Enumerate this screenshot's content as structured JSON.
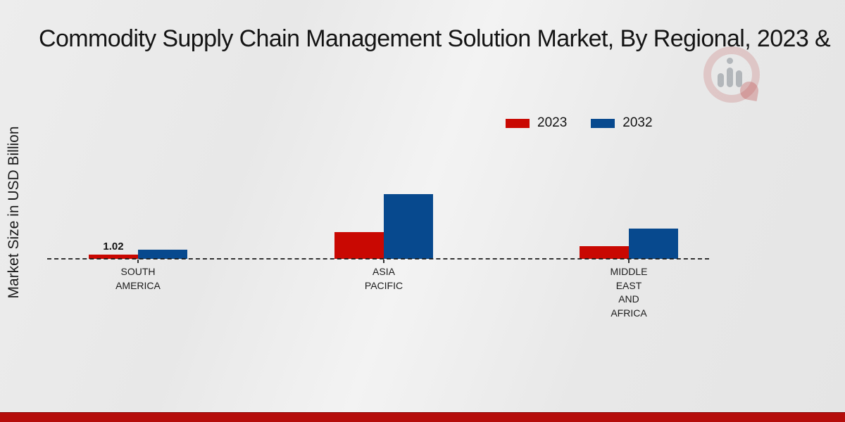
{
  "title": "Commodity Supply Chain Management Solution Market, By Regional, 2023 &",
  "ylabel": "Market Size in USD Billion",
  "legend": {
    "items": [
      {
        "label": "2023",
        "color": "#c90802"
      },
      {
        "label": "2032",
        "color": "#07498e"
      }
    ]
  },
  "footer": {
    "stripe_color": "#b50d0b"
  },
  "watermark": {
    "name": "market-research-brand-logo"
  },
  "chart_data": {
    "type": "bar",
    "categories": [
      "South America",
      "Asia Pacific",
      "Middle East and Africa"
    ],
    "category_tick_labels": [
      [
        "SOUTH",
        "AMERICA"
      ],
      [
        "ASIA",
        "PACIFIC"
      ],
      [
        "MIDDLE",
        "EAST",
        "AND",
        "AFRICA"
      ]
    ],
    "series": [
      {
        "name": "2023",
        "color": "#c90802",
        "values": [
          1.02,
          7.1,
          3.25
        ],
        "data_labels": [
          "1.02",
          "",
          ""
        ]
      },
      {
        "name": "2032",
        "color": "#07498e",
        "values": [
          2.35,
          17.1,
          7.9
        ],
        "data_labels": [
          "",
          "",
          ""
        ]
      }
    ],
    "title": "Commodity Supply Chain Management Solution Market, By Regional, 2023 &",
    "xlabel": "",
    "ylabel": "Market Size in USD Billion",
    "ylim": [
      0,
      20
    ],
    "grid": false,
    "legend_position": "top-right",
    "baseline_style": "dashed",
    "accent_colors": {
      "red_2023": "#c90802",
      "blue_2032": "#07498e"
    }
  }
}
